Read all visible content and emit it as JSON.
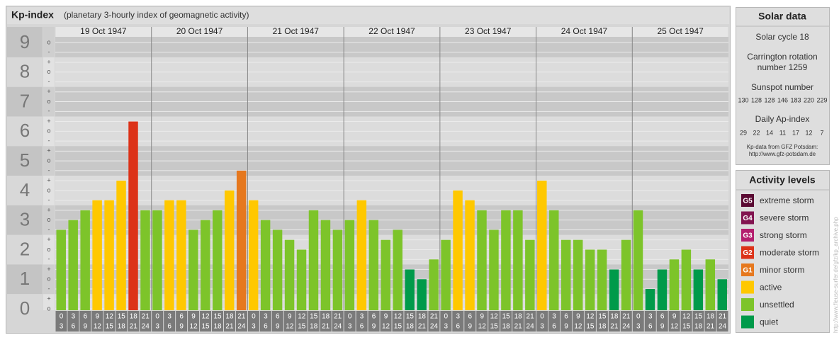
{
  "title": "Kp-index",
  "subtitle": "(planetary 3-hourly index of geomagnetic activity)",
  "chart_data": {
    "type": "bar",
    "days": [
      "19 Oct 1947",
      "20 Oct 1947",
      "21 Oct 1947",
      "22 Oct 1947",
      "23 Oct 1947",
      "24 Oct 1947",
      "25 Oct 1947"
    ],
    "intervals": [
      [
        "0",
        "3"
      ],
      [
        "3",
        "6"
      ],
      [
        "6",
        "9"
      ],
      [
        "9",
        "12"
      ],
      [
        "12",
        "15"
      ],
      [
        "15",
        "18"
      ],
      [
        "18",
        "21"
      ],
      [
        "21",
        "24"
      ]
    ],
    "values": [
      2.67,
      3,
      3.33,
      3.67,
      3.67,
      4.33,
      6.33,
      3.33,
      3.33,
      3.67,
      3.67,
      2.67,
      3,
      3.33,
      4,
      4.67,
      3.67,
      3,
      2.67,
      2.33,
      2,
      3.33,
      3,
      2.67,
      3,
      3.67,
      3,
      2.33,
      2.67,
      1.33,
      1,
      1.67,
      2.33,
      4,
      3.67,
      3.33,
      2.67,
      3.33,
      3.33,
      2.33,
      4.33,
      3.33,
      2.33,
      2.33,
      2,
      2,
      1.33,
      2.33,
      3.33,
      0.67,
      1.33,
      1.67,
      2,
      1.33,
      1.67,
      1
    ],
    "colors": [
      "#7dc42a",
      "#7dc42a",
      "#7dc42a",
      "#ffc800",
      "#ffc800",
      "#ffc800",
      "#dc3218",
      "#7dc42a",
      "#7dc42a",
      "#ffc800",
      "#ffc800",
      "#7dc42a",
      "#7dc42a",
      "#7dc42a",
      "#ffc800",
      "#e6781e",
      "#ffc800",
      "#7dc42a",
      "#7dc42a",
      "#7dc42a",
      "#7dc42a",
      "#7dc42a",
      "#7dc42a",
      "#7dc42a",
      "#7dc42a",
      "#ffc800",
      "#7dc42a",
      "#7dc42a",
      "#7dc42a",
      "#009a4a",
      "#009a4a",
      "#7dc42a",
      "#7dc42a",
      "#ffc800",
      "#ffc800",
      "#7dc42a",
      "#7dc42a",
      "#7dc42a",
      "#7dc42a",
      "#7dc42a",
      "#ffc800",
      "#7dc42a",
      "#7dc42a",
      "#7dc42a",
      "#7dc42a",
      "#7dc42a",
      "#009a4a",
      "#7dc42a",
      "#7dc42a",
      "#009a4a",
      "#009a4a",
      "#7dc42a",
      "#7dc42a",
      "#009a4a",
      "#7dc42a",
      "#009a4a"
    ],
    "ylim": [
      0,
      9
    ],
    "yticks": [
      0,
      1,
      2,
      3,
      4,
      5,
      6,
      7,
      8,
      9
    ],
    "minor_yticks": [
      {
        "value": 0,
        "label": "o"
      },
      {
        "value": 0.33,
        "label": "+"
      },
      {
        "value": 0.67,
        "label": "-"
      },
      {
        "value": 1,
        "label": "o"
      },
      {
        "value": 1.33,
        "label": "+"
      },
      {
        "value": 1.67,
        "label": "-"
      },
      {
        "value": 2,
        "label": "o"
      },
      {
        "value": 2.33,
        "label": "+"
      },
      {
        "value": 2.67,
        "label": "-"
      },
      {
        "value": 3,
        "label": "o"
      },
      {
        "value": 3.33,
        "label": "+"
      },
      {
        "value": 3.67,
        "label": "-"
      },
      {
        "value": 4,
        "label": "o"
      },
      {
        "value": 4.33,
        "label": "+"
      },
      {
        "value": 4.67,
        "label": "-"
      },
      {
        "value": 5,
        "label": "o"
      },
      {
        "value": 5.33,
        "label": "+"
      },
      {
        "value": 5.67,
        "label": "-"
      },
      {
        "value": 6,
        "label": "o"
      },
      {
        "value": 6.33,
        "label": "+"
      },
      {
        "value": 6.67,
        "label": "-"
      },
      {
        "value": 7,
        "label": "o"
      },
      {
        "value": 7.33,
        "label": "+"
      },
      {
        "value": 7.67,
        "label": "-"
      },
      {
        "value": 8,
        "label": "o"
      },
      {
        "value": 8.33,
        "label": "+"
      },
      {
        "value": 8.67,
        "label": "-"
      },
      {
        "value": 9,
        "label": "o"
      }
    ],
    "grid": true
  },
  "solar_data": {
    "title": "Solar data",
    "solar_cycle": "Solar cycle 18",
    "carrington": [
      "Carrington rotation",
      "number 1259"
    ],
    "sunspot_label": "Sunspot number",
    "sunspot_numbers": [
      130,
      128,
      128,
      146,
      183,
      220,
      229
    ],
    "ap_label": "Daily Ap-index",
    "ap_values": [
      29,
      22,
      14,
      11,
      17,
      12,
      7
    ],
    "source": [
      "Kp-data from GFZ Potsdam:",
      "http://www.gfz-potsdam.de"
    ]
  },
  "activity_levels": {
    "title": "Activity levels",
    "items": [
      {
        "code": "G5",
        "name": "extreme storm",
        "color": "#5a0a32"
      },
      {
        "code": "G4",
        "name": "severe storm",
        "color": "#821450"
      },
      {
        "code": "G3",
        "name": "strong storm",
        "color": "#b41e6e"
      },
      {
        "code": "G2",
        "name": "moderate storm",
        "color": "#dc3218"
      },
      {
        "code": "G1",
        "name": "minor storm",
        "color": "#e6781e"
      },
      {
        "name": "active",
        "color": "#ffc800"
      },
      {
        "name": "unsettled",
        "color": "#7dc42a"
      },
      {
        "name": "quiet",
        "color": "#009a4a"
      }
    ]
  },
  "watermark": "http://www.fleuse-surfer.de/gfz/kp_archive.php"
}
